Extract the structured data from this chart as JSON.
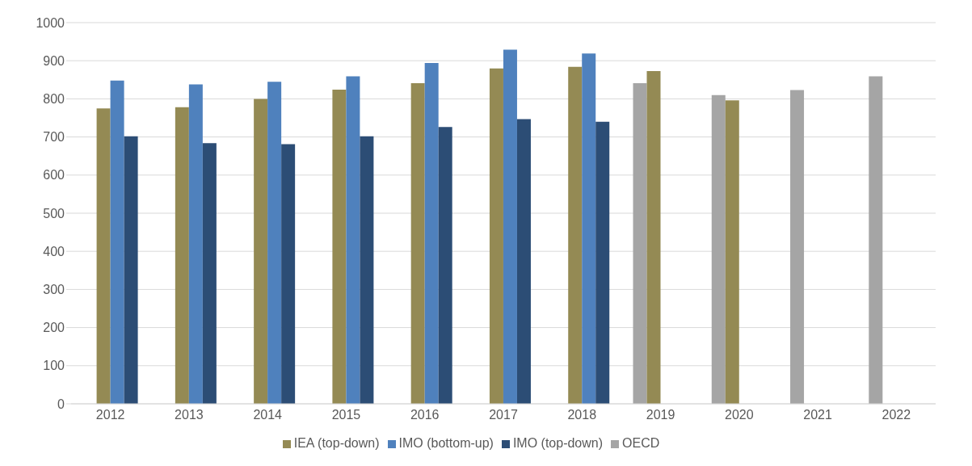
{
  "chart_data": {
    "type": "bar",
    "categories": [
      "2012",
      "2013",
      "2014",
      "2015",
      "2016",
      "2017",
      "2018",
      "2019",
      "2020",
      "2021",
      "2022"
    ],
    "series": [
      {
        "name": "OECD",
        "color": "#a5a5a5",
        "values": [
          null,
          null,
          null,
          null,
          null,
          null,
          null,
          841,
          810,
          823,
          859
        ]
      },
      {
        "name": "IEA (top-down)",
        "color": "#948a54",
        "values": [
          775,
          778,
          800,
          824,
          841,
          880,
          884,
          873,
          796,
          null,
          null
        ]
      },
      {
        "name": "IMO (bottom-up)",
        "color": "#4f81bd",
        "values": [
          848,
          838,
          845,
          859,
          894,
          929,
          919,
          null,
          null,
          null,
          null
        ]
      },
      {
        "name": "IMO (top-down)",
        "color": "#2c4d75",
        "values": [
          702,
          684,
          681,
          702,
          726,
          747,
          740,
          null,
          null,
          null,
          null
        ]
      }
    ],
    "ylim": [
      0,
      1000
    ],
    "yticks": [
      0,
      100,
      200,
      300,
      400,
      500,
      600,
      700,
      800,
      900,
      1000
    ],
    "grid": "y",
    "legend": "bottom"
  }
}
